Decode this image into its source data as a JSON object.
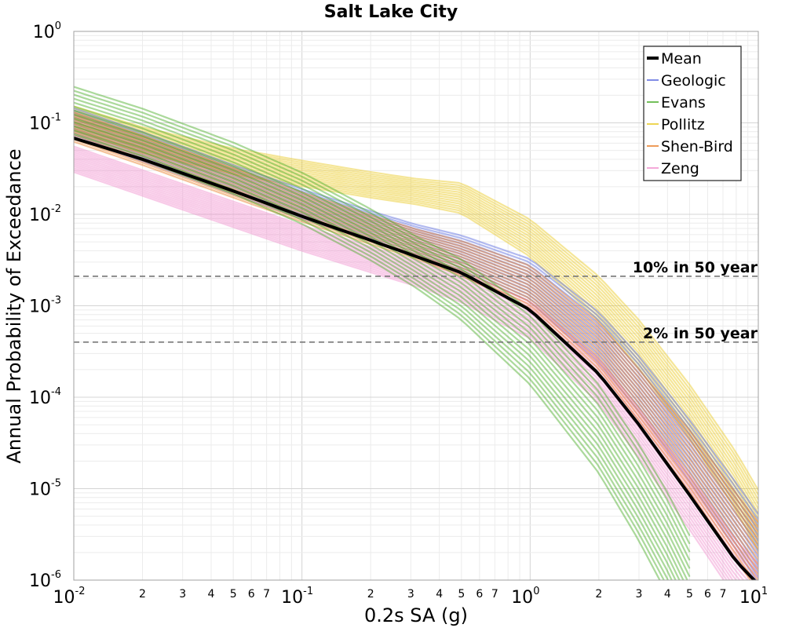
{
  "chart_data": {
    "type": "line",
    "title": "Salt Lake City",
    "xlabel": "0.2s SA (g)",
    "ylabel": "Annual Probability of Exceedance",
    "x_scale": "log",
    "y_scale": "log",
    "xlim": [
      0.01,
      10
    ],
    "ylim": [
      1e-06,
      1
    ],
    "grid": true,
    "legend_position": "top-right",
    "x_major_ticks": [
      {
        "base": "10",
        "exp": "-2",
        "value": 0.01
      },
      {
        "base": "10",
        "exp": "-1",
        "value": 0.1
      },
      {
        "base": "10",
        "exp": "0",
        "value": 1
      },
      {
        "base": "10",
        "exp": "1",
        "value": 10
      }
    ],
    "x_minor_labels": [
      "2",
      "3",
      "4",
      "5",
      "6",
      "7"
    ],
    "y_major_ticks": [
      {
        "base": "10",
        "exp": "0",
        "value": 1
      },
      {
        "base": "10",
        "exp": "-1",
        "value": 0.1
      },
      {
        "base": "10",
        "exp": "-2",
        "value": 0.01
      },
      {
        "base": "10",
        "exp": "-3",
        "value": 0.001
      },
      {
        "base": "10",
        "exp": "-4",
        "value": 0.0001
      },
      {
        "base": "10",
        "exp": "-5",
        "value": 1e-05
      },
      {
        "base": "10",
        "exp": "-6",
        "value": 1e-06
      }
    ],
    "reference_lines": [
      {
        "label": "10% in 50 year",
        "y": 0.0021
      },
      {
        "label": "2% in 50 year",
        "y": 0.0004
      }
    ],
    "series": [
      {
        "name": "Mean",
        "color": "#000000",
        "x": [
          0.01,
          0.02,
          0.05,
          0.1,
          0.2,
          0.5,
          1,
          2,
          3,
          5,
          8,
          10
        ],
        "y": [
          0.068,
          0.04,
          0.018,
          0.0095,
          0.0052,
          0.0023,
          0.0009,
          0.00018,
          5e-05,
          8.5e-06,
          1.6e-06,
          9e-07
        ]
      },
      {
        "name": "Geologic",
        "color": "#5566dd",
        "x": [
          0.01,
          0.02,
          0.05,
          0.1,
          0.2,
          0.5,
          1,
          2,
          3,
          5,
          8,
          10
        ],
        "y": [
          0.1,
          0.055,
          0.024,
          0.013,
          0.0075,
          0.0038,
          0.0019,
          0.00045,
          0.00014,
          2.6e-05,
          5e-06,
          2.2e-06
        ]
      },
      {
        "name": "Evans",
        "color": "#44aa22",
        "x": [
          0.01,
          0.02,
          0.05,
          0.1,
          0.2,
          0.5,
          1,
          2,
          3,
          4,
          5
        ],
        "y": [
          0.13,
          0.075,
          0.032,
          0.015,
          0.006,
          0.0015,
          0.00035,
          4.5e-05,
          9e-06,
          2.5e-06,
          8e-07
        ]
      },
      {
        "name": "Pollitz",
        "color": "#e8c81a",
        "x": [
          0.01,
          0.02,
          0.05,
          0.1,
          0.2,
          0.5,
          1,
          2,
          3,
          5,
          8,
          10
        ],
        "y": [
          0.11,
          0.065,
          0.038,
          0.028,
          0.021,
          0.015,
          0.0055,
          0.0012,
          0.00038,
          7e-05,
          1.2e-05,
          4.5e-06
        ]
      },
      {
        "name": "Shen-Bird",
        "color": "#e87a22",
        "x": [
          0.01,
          0.02,
          0.05,
          0.1,
          0.2,
          0.5,
          1,
          2,
          3,
          5,
          8,
          10
        ],
        "y": [
          0.09,
          0.05,
          0.022,
          0.012,
          0.0068,
          0.0033,
          0.0016,
          0.00035,
          0.0001,
          2e-05,
          3.8e-06,
          1.8e-06
        ]
      },
      {
        "name": "Zeng",
        "color": "#f08ccc",
        "x": [
          0.01,
          0.02,
          0.05,
          0.1,
          0.2,
          0.5,
          1,
          2,
          3,
          5,
          8,
          10
        ],
        "y": [
          0.04,
          0.022,
          0.01,
          0.0055,
          0.0032,
          0.0016,
          0.0007,
          0.00015,
          4e-05,
          7e-06,
          1.3e-06,
          7e-07
        ]
      }
    ]
  }
}
